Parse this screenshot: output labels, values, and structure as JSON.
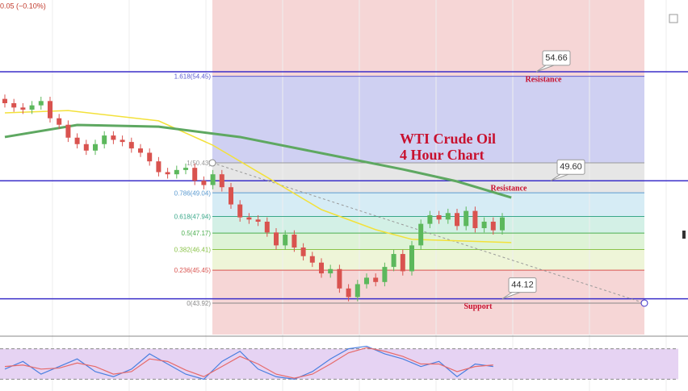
{
  "chart_data": {
    "type": "candlestick",
    "header": "0.05 (−0.10%)",
    "title": "WTI Crude Oil",
    "subtitle": "4 Hour Chart",
    "ylim": [
      42.46,
      57.99
    ],
    "open": [
      53.4,
      53.2,
      53.0,
      52.9,
      53.1,
      53.3,
      52.5,
      52.2,
      51.6,
      51.3,
      51.0,
      51.3,
      51.7,
      51.5,
      51.4,
      51.1,
      50.9,
      50.5,
      50.0,
      49.9,
      50.1,
      50.2,
      49.6,
      49.4,
      49.9,
      49.3,
      48.5,
      47.9,
      47.8,
      47.7,
      47.2,
      46.6,
      47.1,
      46.5,
      46.1,
      45.8,
      45.3,
      45.5,
      44.6,
      44.2,
      44.8,
      45.1,
      44.9,
      45.6,
      46.2,
      45.4,
      46.6,
      47.6,
      48.0,
      47.8,
      48.1,
      47.5,
      48.2,
      47.4,
      47.7,
      47.3
    ],
    "high": [
      53.6,
      53.4,
      53.2,
      53.3,
      53.5,
      53.5,
      52.7,
      52.4,
      51.8,
      51.5,
      51.5,
      51.9,
      51.9,
      51.7,
      51.6,
      51.3,
      51.1,
      50.7,
      50.2,
      50.3,
      50.4,
      50.4,
      49.8,
      50.1,
      50.1,
      49.5,
      48.7,
      48.1,
      48.0,
      47.9,
      47.4,
      47.3,
      47.3,
      46.7,
      46.3,
      46.0,
      45.7,
      45.7,
      44.8,
      45.0,
      45.3,
      45.3,
      45.8,
      46.4,
      46.4,
      46.8,
      47.8,
      48.2,
      48.2,
      48.3,
      48.3,
      48.4,
      48.4,
      47.9,
      47.9,
      48.1
    ],
    "low": [
      53.0,
      52.8,
      52.7,
      52.7,
      52.9,
      52.3,
      52.0,
      51.4,
      51.1,
      50.8,
      50.8,
      51.1,
      51.3,
      51.2,
      50.9,
      50.7,
      50.3,
      49.8,
      49.7,
      49.7,
      49.9,
      49.4,
      49.2,
      49.2,
      49.1,
      48.3,
      47.7,
      47.6,
      47.5,
      47.0,
      46.4,
      46.4,
      46.3,
      45.9,
      45.6,
      45.1,
      45.1,
      44.4,
      44.0,
      44.0,
      44.6,
      44.7,
      44.7,
      45.4,
      45.2,
      45.2,
      46.4,
      47.4,
      47.6,
      47.6,
      47.3,
      47.3,
      47.2,
      47.2,
      47.1,
      47.1
    ],
    "close": [
      53.2,
      53.0,
      52.9,
      53.1,
      53.3,
      52.5,
      52.2,
      51.6,
      51.3,
      51.0,
      51.3,
      51.7,
      51.5,
      51.4,
      51.1,
      50.9,
      50.5,
      50.0,
      49.9,
      50.1,
      50.2,
      49.6,
      49.4,
      49.9,
      49.3,
      48.5,
      47.9,
      47.8,
      47.7,
      47.2,
      46.6,
      47.1,
      46.5,
      46.1,
      45.8,
      45.3,
      45.5,
      44.6,
      44.2,
      44.8,
      45.1,
      44.9,
      45.6,
      46.2,
      45.4,
      46.6,
      47.6,
      48.0,
      47.8,
      48.1,
      47.5,
      48.2,
      47.4,
      47.7,
      47.3,
      47.9
    ],
    "up_color": "#5cb85c",
    "down_color": "#d9534f",
    "moving_averages": [
      {
        "color": "#f3e13a",
        "x": [
          0,
          7,
          17,
          23,
          29,
          35,
          41,
          45,
          56
        ],
        "values": [
          52.75,
          52.86,
          52.38,
          51.25,
          49.76,
          48.26,
          47.33,
          46.88,
          46.73
        ]
      },
      {
        "color": "#5ea861",
        "x": [
          0,
          8,
          17,
          26,
          35,
          44,
          50,
          56
        ],
        "values": [
          51.63,
          52.19,
          52.11,
          51.63,
          50.88,
          50.13,
          49.57,
          48.82
        ]
      }
    ],
    "fib_levels": [
      {
        "value": 54.45,
        "label": "1.618(54.45)"
      },
      {
        "value": 50.43,
        "label": "1(50.43)"
      },
      {
        "value": 49.04,
        "label": "0.786(49.04)"
      },
      {
        "value": 47.94,
        "label": "0.618(47.94)"
      },
      {
        "value": 47.17,
        "label": "0.5(47.17)"
      },
      {
        "value": 46.41,
        "label": "0.382(46.41)"
      },
      {
        "value": 45.45,
        "label": "0.236(45.45)"
      },
      {
        "value": 43.92,
        "label": "0(43.92)"
      }
    ],
    "levels": [
      {
        "value": 54.66,
        "label": "54.66",
        "note": "Resistance"
      },
      {
        "value": 49.6,
        "label": "49.60",
        "note": "Resistance"
      },
      {
        "value": 44.12,
        "label": "44.12",
        "note": "Support"
      }
    ],
    "oscillator": {
      "ylim": [
        0,
        100
      ],
      "band": [
        20,
        80
      ],
      "series": [
        {
          "color": "#4a7fe0",
          "values": [
            40,
            55,
            30,
            45,
            60,
            35,
            25,
            40,
            70,
            50,
            30,
            20,
            55,
            75,
            40,
            25,
            20,
            35,
            60,
            80,
            85,
            70,
            60,
            45,
            55,
            25,
            50,
            45
          ]
        },
        {
          "color": "#e66a6a",
          "values": [
            45,
            48,
            40,
            42,
            52,
            45,
            30,
            35,
            60,
            55,
            38,
            25,
            45,
            65,
            50,
            30,
            22,
            30,
            50,
            72,
            82,
            75,
            65,
            50,
            50,
            35,
            45,
            48
          ]
        }
      ]
    }
  }
}
